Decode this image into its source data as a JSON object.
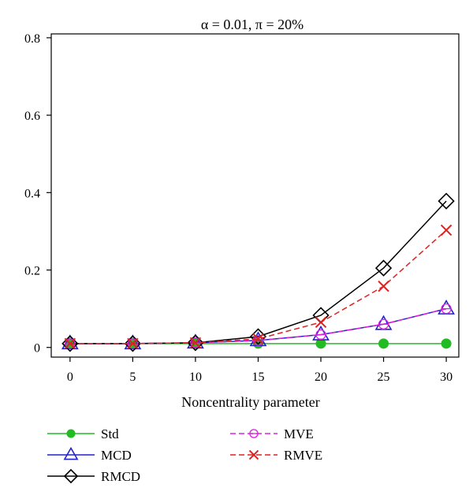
{
  "chart_data": {
    "type": "line",
    "title": "α = 0.01, π = 20%",
    "xlabel": "Noncentrality parameter",
    "ylabel": "",
    "x": [
      0,
      5,
      10,
      15,
      20,
      25,
      30
    ],
    "xticks": [
      "0",
      "5",
      "10",
      "15",
      "20",
      "25",
      "30"
    ],
    "yticks": [
      "0",
      "0.2",
      "0.4",
      "0.6",
      "0.8"
    ],
    "xlim": [
      -1.5,
      31
    ],
    "ylim": [
      -0.025,
      0.81
    ],
    "grid": false,
    "legend_position": "bottom",
    "series": [
      {
        "name": "Std",
        "color": "#22bb22",
        "dash": "solid",
        "marker": "dot",
        "values": [
          0.01,
          0.01,
          0.01,
          0.01,
          0.01,
          0.01,
          0.01
        ]
      },
      {
        "name": "MCD",
        "color": "#2222cc",
        "dash": "solid",
        "marker": "triangle",
        "values": [
          0.01,
          0.01,
          0.012,
          0.018,
          0.033,
          0.06,
          0.1
        ]
      },
      {
        "name": "RMCD",
        "color": "#000000",
        "dash": "solid",
        "marker": "diamond",
        "values": [
          0.01,
          0.01,
          0.012,
          0.028,
          0.083,
          0.205,
          0.378
        ]
      },
      {
        "name": "MVE",
        "color": "#dd22dd",
        "dash": "dashed",
        "marker": "circle-dash",
        "values": [
          0.01,
          0.01,
          0.012,
          0.018,
          0.033,
          0.06,
          0.1
        ]
      },
      {
        "name": "RMVE",
        "color": "#dd2222",
        "dash": "dashed",
        "marker": "x",
        "values": [
          0.01,
          0.01,
          0.012,
          0.022,
          0.065,
          0.158,
          0.303
        ]
      }
    ]
  }
}
